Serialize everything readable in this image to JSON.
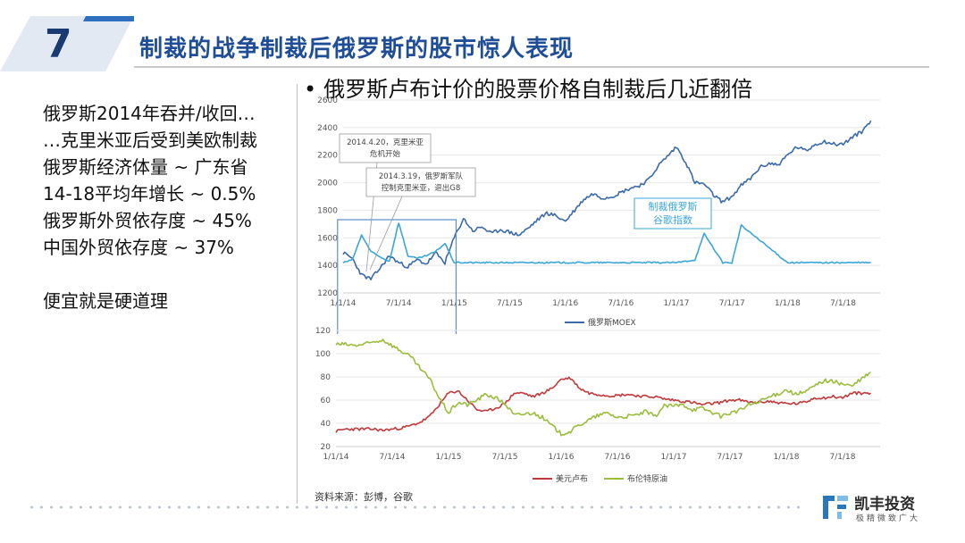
{
  "slide": {
    "number": "7",
    "title": "制裁的战争制裁后俄罗斯的股市惊人表现",
    "bullet": "俄罗斯卢布计价的股票价格自制裁后几近翻倍",
    "left_lines": [
      "俄罗斯2014年吞并/收回…",
      "…克里米亚后受到美欧制裁",
      "俄罗斯经济体量 ~ 广东省",
      "14-18平均年增长 ~ 0.5%",
      "俄罗斯外贸依存度 ~ 45%",
      "中国外贸依存度 ~ 37%"
    ],
    "left_conclusion": "便宜就是硬道理",
    "source": "资料来源：彭博，谷歌",
    "logo_name": "凯丰投资",
    "logo_tagline": "极精微致广大"
  },
  "colors": {
    "title_blue": "#1f4e96",
    "moex": "#3a6aa8",
    "google": "#3aa6d8",
    "usdrub": "#c0393b",
    "brent": "#9bbd3c"
  },
  "chart_data": [
    {
      "type": "line",
      "x_ticks": [
        "1/1/14",
        "7/1/14",
        "1/1/15",
        "7/1/15",
        "1/1/16",
        "7/1/16",
        "1/1/17",
        "7/1/17",
        "1/1/18",
        "7/1/18"
      ],
      "ylim": [
        1200,
        2600
      ],
      "y_ticks": [
        "1200",
        "1400",
        "1600",
        "1800",
        "2000",
        "2200",
        "2400",
        "2600"
      ],
      "legend": "bottom",
      "series": [
        {
          "name": "俄罗斯MOEX",
          "x": [
            "2014-01",
            "2014-02",
            "2014-03",
            "2014-04",
            "2014-05",
            "2014-06",
            "2014-07",
            "2014-08",
            "2014-09",
            "2014-10",
            "2014-11",
            "2014-12",
            "2015-01",
            "2015-02",
            "2015-03",
            "2015-04",
            "2015-05",
            "2015-06",
            "2015-07",
            "2015-08",
            "2015-09",
            "2015-10",
            "2015-11",
            "2015-12",
            "2016-01",
            "2016-02",
            "2016-03",
            "2016-04",
            "2016-05",
            "2016-06",
            "2016-07",
            "2016-08",
            "2016-09",
            "2016-10",
            "2016-11",
            "2016-12",
            "2017-01",
            "2017-02",
            "2017-03",
            "2017-04",
            "2017-05",
            "2017-06",
            "2017-07",
            "2017-08",
            "2017-09",
            "2017-10",
            "2017-11",
            "2017-12",
            "2018-01",
            "2018-02",
            "2018-03",
            "2018-04",
            "2018-05",
            "2018-06",
            "2018-07",
            "2018-08",
            "2018-09",
            "2018-10"
          ],
          "values": [
            1490,
            1450,
            1330,
            1300,
            1380,
            1470,
            1420,
            1390,
            1440,
            1410,
            1490,
            1420,
            1600,
            1740,
            1650,
            1680,
            1630,
            1660,
            1640,
            1620,
            1670,
            1730,
            1780,
            1760,
            1720,
            1800,
            1880,
            1920,
            1890,
            1900,
            1930,
            1960,
            1980,
            2020,
            2120,
            2190,
            2260,
            2150,
            2000,
            1990,
            1910,
            1860,
            1900,
            1980,
            2030,
            2110,
            2140,
            2130,
            2200,
            2260,
            2230,
            2280,
            2300,
            2280,
            2280,
            2330,
            2370,
            2450
          ]
        },
        {
          "name": "谷歌指数",
          "x": [
            "2014-01",
            "2014-02",
            "2014-03",
            "2014-04",
            "2014-05",
            "2014-06",
            "2014-07",
            "2014-08",
            "2014-09",
            "2014-10",
            "2014-11",
            "2014-12",
            "2015-01",
            "2015-06",
            "2016-01",
            "2016-06",
            "2017-01",
            "2017-03",
            "2017-04",
            "2017-06",
            "2017-07",
            "2017-08",
            "2018-01",
            "2018-10"
          ],
          "values": [
            1420,
            1440,
            1620,
            1500,
            1460,
            1430,
            1710,
            1470,
            1450,
            1470,
            1500,
            1560,
            1420,
            1420,
            1420,
            1420,
            1420,
            1440,
            1630,
            1420,
            1420,
            1690,
            1420,
            1420
          ]
        }
      ],
      "annotations": [
        {
          "text": "2014.4.20，克里米亚危机开始",
          "lines": [
            "2014.4.20，克里米亚",
            "危机开始"
          ]
        },
        {
          "text": "2014.3.19，俄罗斯军队控制克里米亚，退出G8",
          "lines": [
            "2014.3.19，俄罗斯军队",
            "控制克里米亚，退出G8"
          ]
        },
        {
          "text": "制裁俄罗斯谷歌指数",
          "lines": [
            "制裁俄罗斯",
            "谷歌指数"
          ]
        }
      ]
    },
    {
      "type": "line",
      "x_ticks": [
        "1/1/14",
        "7/1/14",
        "1/1/15",
        "7/1/15",
        "1/1/16",
        "7/1/16",
        "1/1/17",
        "7/1/17",
        "1/1/18",
        "7/1/18"
      ],
      "ylim": [
        20,
        120
      ],
      "y_ticks": [
        "20",
        "40",
        "60",
        "80",
        "100",
        "120"
      ],
      "legend": "bottom",
      "series": [
        {
          "name": "美元卢布",
          "x": [
            "2014-01",
            "2014-02",
            "2014-03",
            "2014-04",
            "2014-05",
            "2014-06",
            "2014-07",
            "2014-08",
            "2014-09",
            "2014-10",
            "2014-11",
            "2014-12",
            "2015-01",
            "2015-02",
            "2015-03",
            "2015-04",
            "2015-05",
            "2015-06",
            "2015-07",
            "2015-08",
            "2015-09",
            "2015-10",
            "2015-11",
            "2015-12",
            "2016-01",
            "2016-02",
            "2016-03",
            "2016-04",
            "2016-05",
            "2016-06",
            "2016-07",
            "2016-08",
            "2016-09",
            "2016-10",
            "2016-11",
            "2016-12",
            "2017-01",
            "2017-02",
            "2017-03",
            "2017-04",
            "2017-05",
            "2017-06",
            "2017-07",
            "2017-08",
            "2017-09",
            "2017-10",
            "2017-11",
            "2017-12",
            "2018-01",
            "2018-02",
            "2018-03",
            "2018-04",
            "2018-05",
            "2018-06",
            "2018-07",
            "2018-08",
            "2018-09",
            "2018-10"
          ],
          "values": [
            33,
            35,
            35,
            35,
            35,
            34,
            35,
            36,
            38,
            41,
            46,
            56,
            66,
            68,
            60,
            52,
            50,
            53,
            57,
            66,
            66,
            63,
            66,
            70,
            78,
            79,
            70,
            66,
            65,
            64,
            64,
            65,
            64,
            63,
            63,
            61,
            60,
            59,
            58,
            56,
            57,
            58,
            60,
            60,
            58,
            58,
            59,
            58,
            57,
            57,
            58,
            62,
            62,
            63,
            62,
            66,
            66,
            66
          ]
        },
        {
          "name": "布伦特原油",
          "x": [
            "2014-01",
            "2014-02",
            "2014-03",
            "2014-04",
            "2014-05",
            "2014-06",
            "2014-07",
            "2014-08",
            "2014-09",
            "2014-10",
            "2014-11",
            "2014-12",
            "2015-01",
            "2015-02",
            "2015-03",
            "2015-04",
            "2015-05",
            "2015-06",
            "2015-07",
            "2015-08",
            "2015-09",
            "2015-10",
            "2015-11",
            "2015-12",
            "2016-01",
            "2016-02",
            "2016-03",
            "2016-04",
            "2016-05",
            "2016-06",
            "2016-07",
            "2016-08",
            "2016-09",
            "2016-10",
            "2016-11",
            "2016-12",
            "2017-01",
            "2017-02",
            "2017-03",
            "2017-04",
            "2017-05",
            "2017-06",
            "2017-07",
            "2017-08",
            "2017-09",
            "2017-10",
            "2017-11",
            "2017-12",
            "2018-01",
            "2018-02",
            "2018-03",
            "2018-04",
            "2018-05",
            "2018-06",
            "2018-07",
            "2018-08",
            "2018-09",
            "2018-10"
          ],
          "values": [
            108,
            108,
            107,
            108,
            110,
            112,
            107,
            102,
            97,
            87,
            78,
            62,
            49,
            58,
            56,
            60,
            65,
            62,
            57,
            47,
            48,
            49,
            45,
            38,
            31,
            33,
            39,
            43,
            47,
            49,
            45,
            46,
            47,
            50,
            46,
            55,
            55,
            56,
            52,
            53,
            50,
            46,
            49,
            51,
            56,
            58,
            62,
            65,
            69,
            65,
            67,
            72,
            77,
            76,
            74,
            72,
            78,
            84
          ]
        }
      ]
    }
  ]
}
